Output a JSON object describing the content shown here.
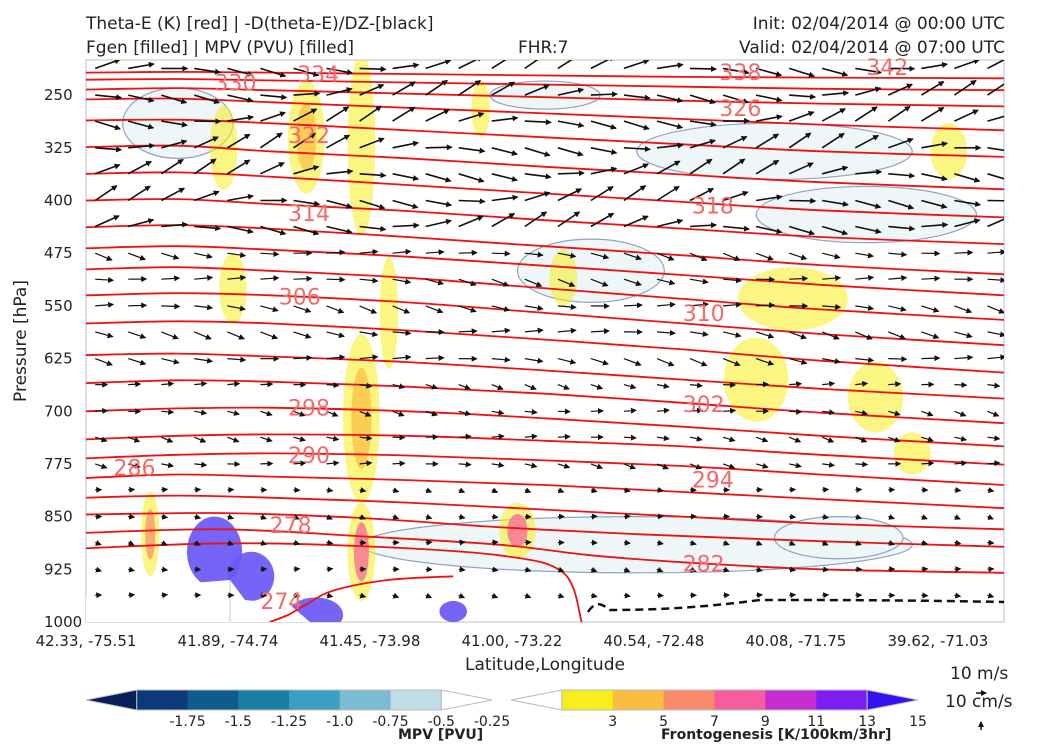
{
  "header": {
    "line1_left": "Theta-E (K) [red] | -D(theta-E)/DZ-[black]",
    "line2_left": "Fgen [filled] | MPV (PVU) [filled]",
    "line2_center": "FHR:7",
    "line1_right": "Init: 02/04/2014 @ 00:00 UTC",
    "line2_right": "Valid: 02/04/2014 @ 07:00 UTC"
  },
  "chart_data": {
    "type": "cross-section",
    "xlabel": "Latitude,Longitude",
    "ylabel": "Pressure [hPa]",
    "ylim": [
      1000,
      200
    ],
    "x_ticks": [
      "42.33, -75.51",
      "41.89, -74.74",
      "41.45, -73.98",
      "41.00, -73.22",
      "40.54, -72.48",
      "40.08, -71.75",
      "39.62, -71.03"
    ],
    "y_ticks": [
      250,
      325,
      400,
      475,
      550,
      625,
      700,
      775,
      850,
      925,
      1000
    ],
    "theta_e_contours": [
      {
        "level": "274",
        "p": [
          1000,
          990,
          975,
          955,
          940,
          935
        ],
        "frac": [
          0.2,
          0.22,
          0.24,
          0.27,
          0.33,
          0.4
        ]
      },
      {
        "level": "278",
        "p": [
          895,
          888,
          892,
          905,
          930,
          1000
        ],
        "frac": [
          0.0,
          0.15,
          0.3,
          0.45,
          0.52,
          0.54
        ]
      },
      {
        "level": "282",
        "p": [
          873,
          868,
          878,
          890,
          905,
          915,
          925,
          930
        ],
        "frac": [
          0.0,
          0.15,
          0.3,
          0.45,
          0.55,
          0.65,
          0.8,
          1.0
        ]
      },
      {
        "level": "286",
        "p": [
          847,
          845,
          852,
          865,
          875,
          885,
          893
        ],
        "frac": [
          0.0,
          0.15,
          0.3,
          0.45,
          0.6,
          0.8,
          1.0
        ]
      },
      {
        "level": "290",
        "p": [
          823,
          820,
          823,
          830,
          840,
          850,
          860,
          868
        ],
        "frac": [
          0.0,
          0.1,
          0.2,
          0.35,
          0.5,
          0.65,
          0.8,
          1.0
        ]
      },
      {
        "level": "294",
        "p": [
          795,
          790,
          793,
          798,
          805,
          815,
          825,
          838
        ],
        "frac": [
          0.0,
          0.1,
          0.2,
          0.35,
          0.5,
          0.65,
          0.8,
          1.0
        ]
      },
      {
        "level": "298",
        "p": [
          767,
          762,
          760,
          763,
          770,
          778,
          790,
          805
        ],
        "frac": [
          0.0,
          0.1,
          0.2,
          0.35,
          0.5,
          0.65,
          0.8,
          1.0
        ]
      },
      {
        "level": "302",
        "p": [
          740,
          735,
          733,
          735,
          742,
          750,
          762,
          776
        ],
        "frac": [
          0.0,
          0.1,
          0.2,
          0.35,
          0.5,
          0.65,
          0.8,
          1.0
        ]
      },
      {
        "level": "306",
        "p": [
          700,
          696,
          695,
          700,
          710,
          722,
          735,
          750
        ],
        "frac": [
          0.0,
          0.1,
          0.2,
          0.35,
          0.5,
          0.65,
          0.8,
          1.0
        ]
      },
      {
        "level": "310",
        "p": [
          660,
          656,
          658,
          665,
          675,
          688,
          702,
          717
        ],
        "frac": [
          0.0,
          0.1,
          0.2,
          0.35,
          0.5,
          0.65,
          0.8,
          1.0
        ]
      },
      {
        "level": "",
        "p": [
          620,
          618,
          622,
          630,
          642,
          655,
          668,
          682
        ],
        "frac": [
          0.0,
          0.1,
          0.2,
          0.35,
          0.5,
          0.65,
          0.8,
          1.0
        ]
      },
      {
        "level": "314",
        "p": [
          575,
          572,
          575,
          585,
          598,
          612,
          628,
          645
        ],
        "frac": [
          0.0,
          0.1,
          0.2,
          0.35,
          0.5,
          0.65,
          0.8,
          1.0
        ]
      },
      {
        "level": "318",
        "p": [
          535,
          532,
          535,
          545,
          560,
          575,
          590,
          606
        ],
        "frac": [
          0.0,
          0.1,
          0.2,
          0.35,
          0.5,
          0.65,
          0.8,
          1.0
        ]
      },
      {
        "level": "",
        "p": [
          498,
          495,
          500,
          510,
          525,
          540,
          555,
          570
        ],
        "frac": [
          0.0,
          0.1,
          0.2,
          0.35,
          0.5,
          0.65,
          0.8,
          1.0
        ]
      },
      {
        "level": "",
        "p": [
          468,
          465,
          470,
          480,
          493,
          506,
          520,
          535
        ],
        "frac": [
          0.0,
          0.1,
          0.2,
          0.35,
          0.5,
          0.65,
          0.8,
          1.0
        ]
      },
      {
        "level": "",
        "p": [
          438,
          435,
          440,
          452,
          465,
          478,
          492,
          505
        ],
        "frac": [
          0.0,
          0.1,
          0.2,
          0.35,
          0.5,
          0.65,
          0.8,
          1.0
        ]
      },
      {
        "level": "",
        "p": [
          400,
          398,
          405,
          415,
          428,
          440,
          452,
          462
        ],
        "frac": [
          0.0,
          0.1,
          0.2,
          0.35,
          0.5,
          0.65,
          0.8,
          1.0
        ]
      },
      {
        "level": "",
        "p": [
          362,
          360,
          366,
          378,
          390,
          402,
          414,
          424
        ],
        "frac": [
          0.0,
          0.1,
          0.2,
          0.35,
          0.5,
          0.65,
          0.8,
          1.0
        ]
      },
      {
        "level": "",
        "p": [
          324,
          322,
          330,
          340,
          352,
          363,
          374,
          384
        ],
        "frac": [
          0.0,
          0.1,
          0.2,
          0.35,
          0.5,
          0.65,
          0.8,
          1.0
        ]
      },
      {
        "level": "",
        "p": [
          286,
          285,
          290,
          300,
          310,
          320,
          330,
          338
        ],
        "frac": [
          0.0,
          0.1,
          0.2,
          0.35,
          0.5,
          0.65,
          0.8,
          1.0
        ]
      },
      {
        "level": "",
        "p": [
          256,
          255,
          260,
          268,
          276,
          284,
          292,
          300
        ],
        "frac": [
          0.0,
          0.1,
          0.2,
          0.35,
          0.5,
          0.65,
          0.8,
          1.0
        ]
      },
      {
        "level": "",
        "p": [
          242,
          240,
          243,
          248,
          253,
          258,
          262,
          266
        ],
        "frac": [
          0.0,
          0.1,
          0.2,
          0.35,
          0.5,
          0.65,
          0.8,
          1.0
        ]
      },
      {
        "level": "",
        "p": [
          228,
          227,
          229,
          232,
          235,
          238,
          241,
          243
        ],
        "frac": [
          0.0,
          0.1,
          0.2,
          0.35,
          0.5,
          0.65,
          0.8,
          1.0
        ]
      },
      {
        "level": "",
        "p": [
          218,
          217,
          218,
          220,
          222,
          224,
          225,
          226
        ],
        "frac": [
          0.0,
          0.1,
          0.2,
          0.35,
          0.5,
          0.65,
          0.8,
          1.0
        ]
      }
    ],
    "theta_e_labels": [
      {
        "text": "330",
        "frac": 0.14,
        "p": 232
      },
      {
        "text": "334",
        "frac": 0.23,
        "p": 220
      },
      {
        "text": "338",
        "frac": 0.69,
        "p": 217
      },
      {
        "text": "342",
        "frac": 0.85,
        "p": 210
      },
      {
        "text": "326",
        "frac": 0.69,
        "p": 268
      },
      {
        "text": "322",
        "frac": 0.22,
        "p": 307
      },
      {
        "text": "318",
        "frac": 0.66,
        "p": 407
      },
      {
        "text": "314",
        "frac": 0.22,
        "p": 418
      },
      {
        "text": "310",
        "frac": 0.65,
        "p": 560
      },
      {
        "text": "306",
        "frac": 0.21,
        "p": 537
      },
      {
        "text": "302",
        "frac": 0.65,
        "p": 690
      },
      {
        "text": "298",
        "frac": 0.22,
        "p": 695
      },
      {
        "text": "294",
        "frac": 0.66,
        "p": 797
      },
      {
        "text": "290",
        "frac": 0.22,
        "p": 762
      },
      {
        "text": "286",
        "frac": 0.03,
        "p": 780
      },
      {
        "text": "282",
        "frac": 0.65,
        "p": 917
      },
      {
        "text": "278",
        "frac": 0.2,
        "p": 862
      },
      {
        "text": "274",
        "frac": 0.19,
        "p": 970
      }
    ],
    "fgen_blobs": [
      {
        "frac": 0.07,
        "p": 875,
        "w": 0.01,
        "h": 60,
        "level": 7
      },
      {
        "frac": 0.15,
        "p": 325,
        "w": 0.015,
        "h": 60,
        "level": 3
      },
      {
        "frac": 0.16,
        "p": 525,
        "w": 0.015,
        "h": 50,
        "level": 3
      },
      {
        "frac": 0.24,
        "p": 310,
        "w": 0.02,
        "h": 80,
        "level": 5
      },
      {
        "frac": 0.3,
        "p": 320,
        "w": 0.015,
        "h": 130,
        "level": 3
      },
      {
        "frac": 0.3,
        "p": 710,
        "w": 0.02,
        "h": 120,
        "level": 5
      },
      {
        "frac": 0.3,
        "p": 900,
        "w": 0.015,
        "h": 70,
        "level": 9
      },
      {
        "frac": 0.33,
        "p": 560,
        "w": 0.01,
        "h": 80,
        "level": 3
      },
      {
        "frac": 0.43,
        "p": 270,
        "w": 0.01,
        "h": 40,
        "level": 3
      },
      {
        "frac": 0.47,
        "p": 870,
        "w": 0.02,
        "h": 40,
        "level": 9
      },
      {
        "frac": 0.52,
        "p": 510,
        "w": 0.015,
        "h": 40,
        "level": 3
      },
      {
        "frac": 0.73,
        "p": 655,
        "w": 0.035,
        "h": 60,
        "level": 3
      },
      {
        "frac": 0.77,
        "p": 540,
        "w": 0.06,
        "h": 45,
        "level": 3
      },
      {
        "frac": 0.86,
        "p": 680,
        "w": 0.03,
        "h": 50,
        "level": 3
      },
      {
        "frac": 0.9,
        "p": 760,
        "w": 0.02,
        "h": 30,
        "level": 3
      },
      {
        "frac": 0.94,
        "p": 330,
        "w": 0.02,
        "h": 40,
        "level": 3
      }
    ],
    "mpv_regions": [
      {
        "frac": 0.1,
        "p": 290,
        "w": 0.06,
        "h": 50,
        "value": -0.25
      },
      {
        "frac": 0.5,
        "p": 250,
        "w": 0.06,
        "h": 20,
        "value": -0.25
      },
      {
        "frac": 0.75,
        "p": 330,
        "w": 0.15,
        "h": 40,
        "value": -0.25
      },
      {
        "frac": 0.85,
        "p": 420,
        "w": 0.12,
        "h": 40,
        "value": -0.25
      },
      {
        "frac": 0.55,
        "p": 500,
        "w": 0.08,
        "h": 45,
        "value": -0.25
      },
      {
        "frac": 0.6,
        "p": 890,
        "w": 0.3,
        "h": 40,
        "value": -0.25
      },
      {
        "frac": 0.82,
        "p": 880,
        "w": 0.07,
        "h": 30,
        "value": -0.25
      }
    ],
    "neg_mpv_patches": [
      {
        "frac": 0.14,
        "p": 900,
        "w": 0.03,
        "h": 50
      },
      {
        "frac": 0.18,
        "p": 935,
        "w": 0.025,
        "h": 35
      },
      {
        "frac": 0.25,
        "p": 990,
        "w": 0.03,
        "h": 25
      },
      {
        "frac": 0.4,
        "p": 985,
        "w": 0.015,
        "h": 15
      }
    ],
    "mpv_colorbar": {
      "label": "MPV [PVU]",
      "ticks": [
        "-1.75",
        "-1.5",
        "-1.25",
        "-1.0",
        "-0.75",
        "-0.5",
        "-0.25"
      ],
      "colors": [
        "#08205a",
        "#0b3a78",
        "#0f5c8c",
        "#1a7ea2",
        "#3c9fbf",
        "#7bbcd4",
        "#bedde6",
        "#ffffff"
      ]
    },
    "fgen_colorbar": {
      "label": "Frontogenesis [K/100km/3hr]",
      "ticks": [
        "3",
        "5",
        "7",
        "9",
        "11",
        "13",
        "15"
      ],
      "colors": [
        "#ffffff",
        "#f7ee1c",
        "#fbbd3f",
        "#fa8a6c",
        "#f75d9e",
        "#c22ed1",
        "#7c1ef1",
        "#3412f4"
      ]
    },
    "reference_vector": {
      "u_label": "10 m/s",
      "w_label": "10 cm/s"
    }
  }
}
